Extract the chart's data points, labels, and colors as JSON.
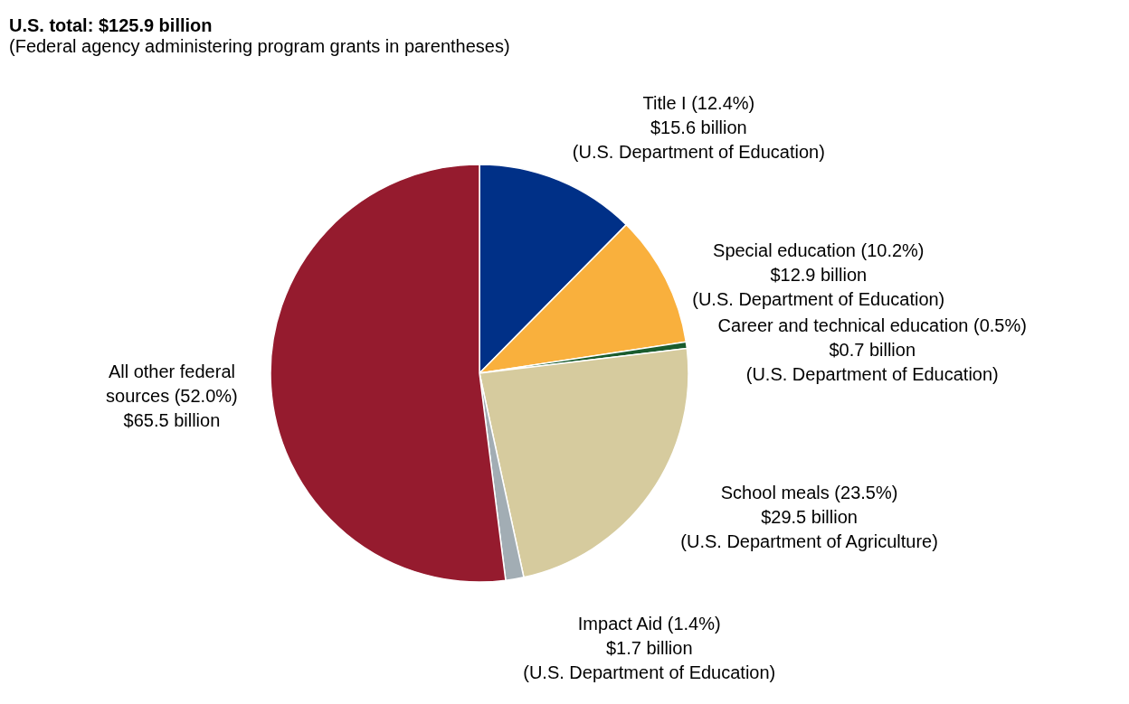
{
  "chart_data": {
    "type": "pie",
    "title": "U.S. total: $125.9 billion",
    "subtitle": "(Federal agency administering program grants in parentheses)",
    "categories": [
      "Title I (12.4%)\n$15.6 billion\n(U.S. Department of Education)",
      "Special education (10.2%)\n$12.9 billion\n(U.S. Department of Education)",
      "Career and technical education (0.5%)\n$0.7 billion\n(U.S. Department of Education)",
      "School meals (23.5%)\n$29.5 billion\n(U.S. Department of Agriculture)",
      "Impact Aid (1.4%)\n$1.7 billion\n(U.S. Department of Education)",
      "All other federal\nsources (52.0%)\n$65.5 billion"
    ],
    "values": [
      12.4,
      10.2,
      0.5,
      23.5,
      1.4,
      52.0
    ],
    "colors": [
      "#003087",
      "#f9b03d",
      "#1a5c2e",
      "#d6cb9e",
      "#a2adb4",
      "#951b2e"
    ]
  }
}
